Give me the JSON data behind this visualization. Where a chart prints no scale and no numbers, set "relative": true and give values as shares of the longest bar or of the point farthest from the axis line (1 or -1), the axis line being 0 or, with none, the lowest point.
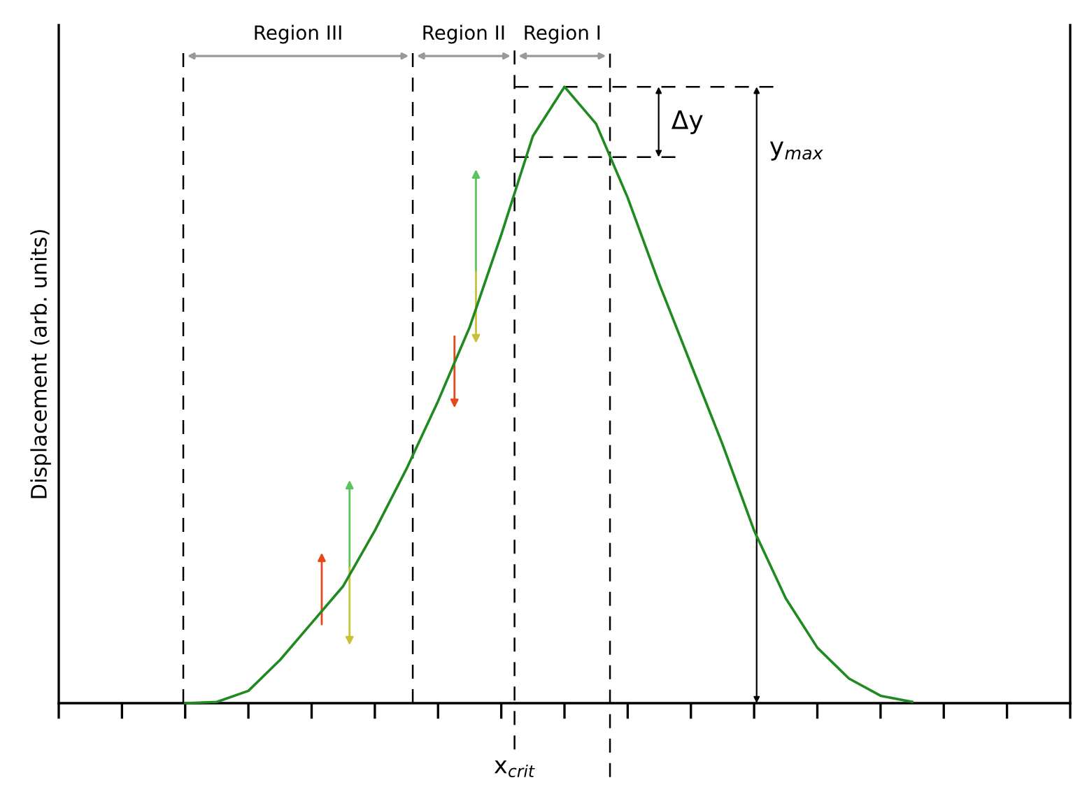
{
  "chart_data": {
    "type": "line",
    "relative": true,
    "ylabel": "Displacement (arb. units)",
    "color": "#1f8a1f",
    "categories": [
      null,
      null,
      null,
      null,
      null,
      null,
      null,
      null,
      null,
      null,
      null,
      null,
      null,
      null,
      null,
      null,
      null,
      null,
      null,
      null,
      null,
      null,
      null,
      null,
      null,
      null,
      null,
      null,
      null,
      null,
      null,
      null,
      null
    ],
    "values": [
      null,
      null,
      null,
      null,
      0,
      0.002,
      0.02,
      0.07,
      0.13,
      0.19,
      0.28,
      0.38,
      0.49,
      0.61,
      0.76,
      0.92,
      1.0,
      0.94,
      0.82,
      0.68,
      0.55,
      0.42,
      0.28,
      0.17,
      0.09,
      0.04,
      0.012,
      0.002,
      null,
      null,
      null,
      null,
      null
    ],
    "annotations": [
      "Region III",
      "Region II",
      "Region I",
      "x$_{crit}$",
      "Δy",
      "y$_{max}$"
    ]
  }
}
